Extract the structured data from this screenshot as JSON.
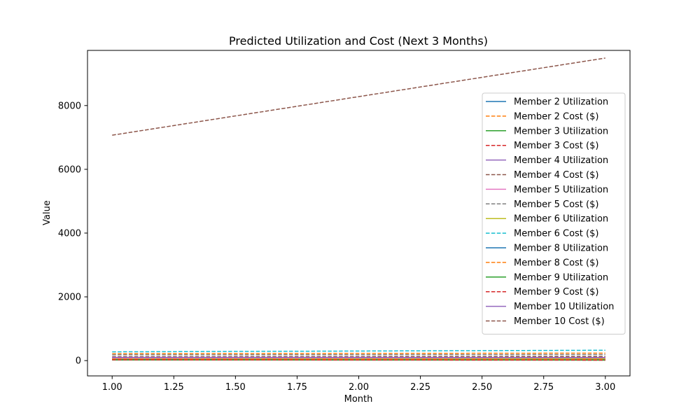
{
  "chart_data": {
    "type": "line",
    "title": "Predicted Utilization and Cost (Next 3 Months)",
    "xlabel": "Month",
    "ylabel": "Value",
    "xlim": [
      0.9,
      3.1
    ],
    "ylim": [
      -480,
      9730
    ],
    "x_ticks": [
      1.0,
      1.25,
      1.5,
      1.75,
      2.0,
      2.25,
      2.5,
      2.75,
      3.0
    ],
    "x_tick_labels": [
      "1.00",
      "1.25",
      "1.50",
      "1.75",
      "2.00",
      "2.25",
      "2.50",
      "2.75",
      "3.00"
    ],
    "y_ticks": [
      0,
      2000,
      4000,
      6000,
      8000
    ],
    "y_tick_labels": [
      "0",
      "2000",
      "4000",
      "6000",
      "8000"
    ],
    "grid": false,
    "legend_position": "right",
    "x": [
      1,
      2,
      3
    ],
    "series": [
      {
        "name": "Member 2 Utilization",
        "values": [
          60,
          55,
          50
        ],
        "color": "#1f77b4",
        "style": "solid"
      },
      {
        "name": "Member 2 Cost ($)",
        "values": [
          215,
          225,
          235
        ],
        "color": "#ff7f0e",
        "style": "dashed"
      },
      {
        "name": "Member 3 Utilization",
        "values": [
          40,
          35,
          30
        ],
        "color": "#2ca02c",
        "style": "solid"
      },
      {
        "name": "Member 3 Cost ($)",
        "values": [
          60,
          50,
          40
        ],
        "color": "#d62728",
        "style": "dashed"
      },
      {
        "name": "Member 4 Utilization",
        "values": [
          90,
          92,
          95
        ],
        "color": "#9467bd",
        "style": "solid"
      },
      {
        "name": "Member 4 Cost ($)",
        "values": [
          120,
          125,
          130
        ],
        "color": "#8c564b",
        "style": "dashed"
      },
      {
        "name": "Member 5 Utilization",
        "values": [
          70,
          72,
          75
        ],
        "color": "#e377c2",
        "style": "solid"
      },
      {
        "name": "Member 5 Cost ($)",
        "values": [
          180,
          185,
          190
        ],
        "color": "#7f7f7f",
        "style": "dashed"
      },
      {
        "name": "Member 6 Utilization",
        "values": [
          50,
          52,
          55
        ],
        "color": "#bcbd22",
        "style": "solid"
      },
      {
        "name": "Member 6 Cost ($)",
        "values": [
          275,
          300,
          325
        ],
        "color": "#17becf",
        "style": "dashed"
      },
      {
        "name": "Member 8 Utilization",
        "values": [
          30,
          28,
          25
        ],
        "color": "#1f77b4",
        "style": "solid"
      },
      {
        "name": "Member 8 Cost ($)",
        "values": [
          45,
          40,
          35
        ],
        "color": "#ff7f0e",
        "style": "dashed"
      },
      {
        "name": "Member 9 Utilization",
        "values": [
          20,
          18,
          15
        ],
        "color": "#2ca02c",
        "style": "solid"
      },
      {
        "name": "Member 9 Cost ($)",
        "values": [
          25,
          20,
          15
        ],
        "color": "#d62728",
        "style": "dashed"
      },
      {
        "name": "Member 10 Utilization",
        "values": [
          100,
          98,
          95
        ],
        "color": "#9467bd",
        "style": "solid"
      },
      {
        "name": "Member 10 Cost ($)",
        "values": [
          7070,
          8280,
          9490
        ],
        "color": "#8c564b",
        "style": "dashed"
      }
    ]
  }
}
